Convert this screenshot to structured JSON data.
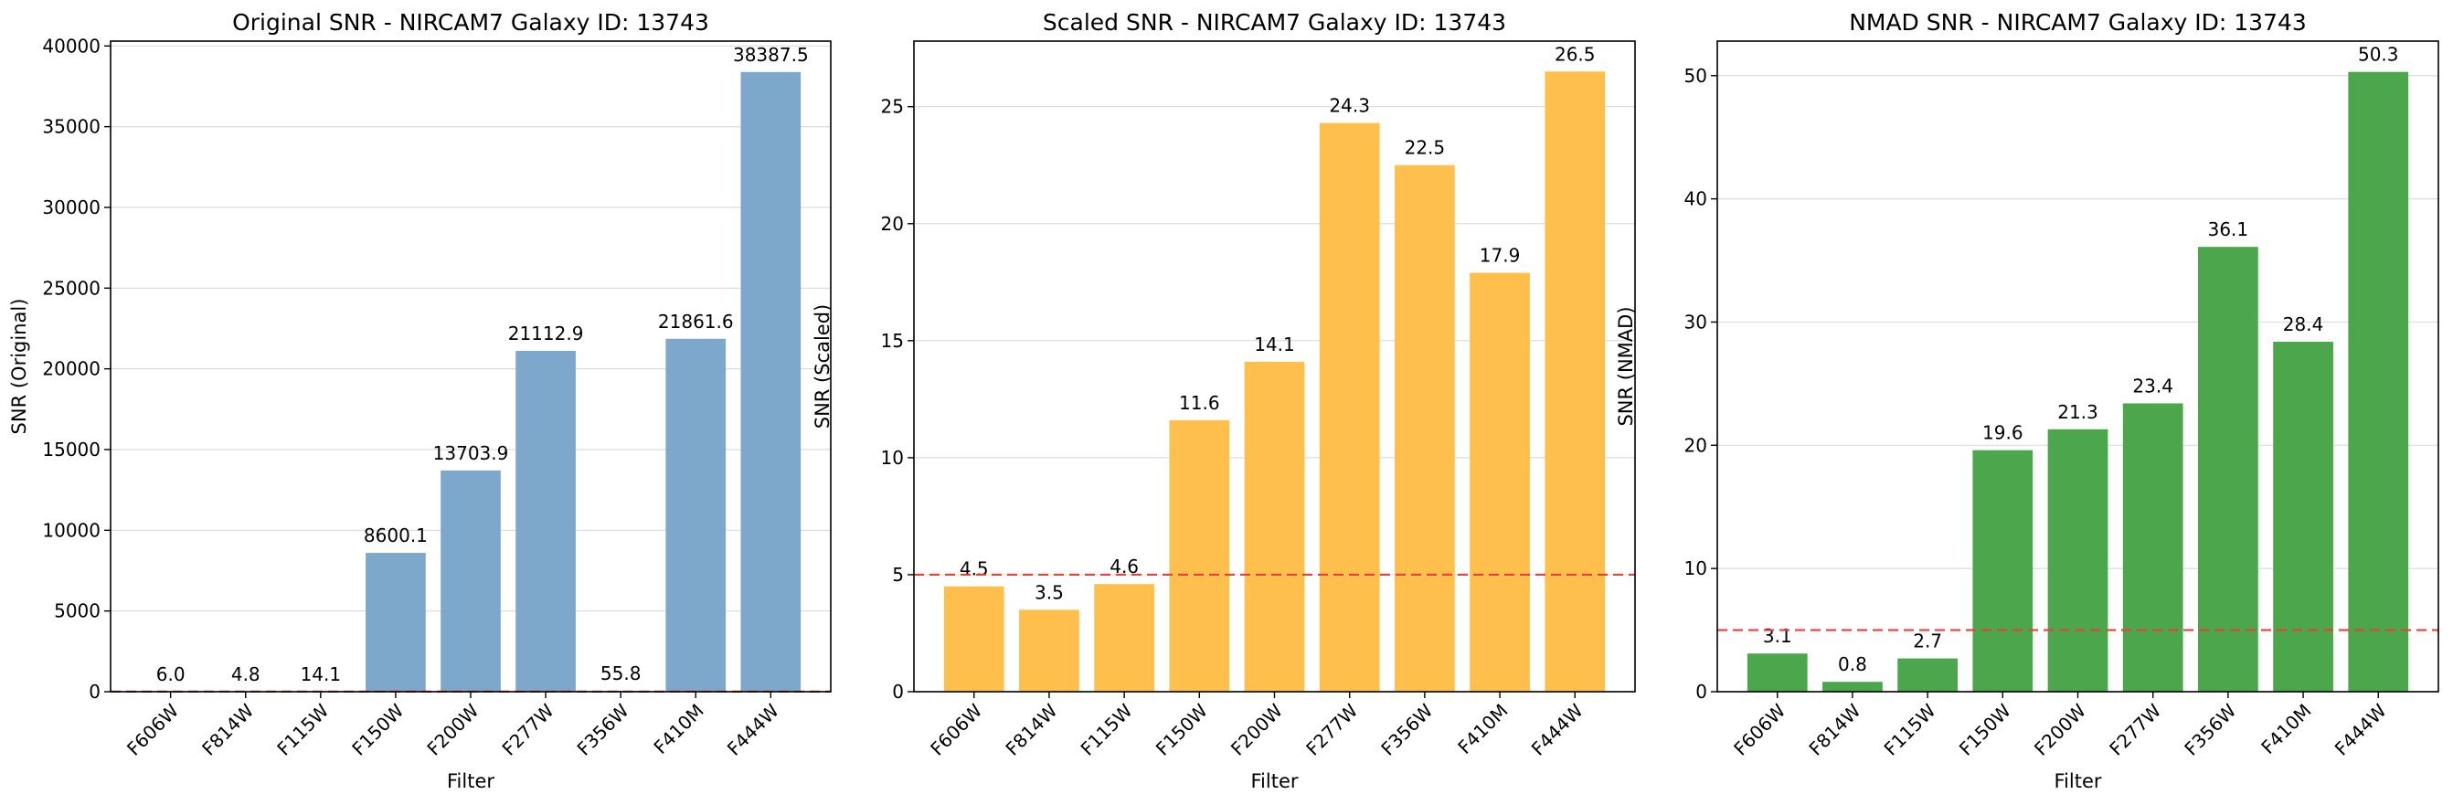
{
  "chart_data": [
    {
      "type": "bar",
      "title": "Original SNR - NIRCAM7 Galaxy ID: 13743",
      "xlabel": "Filter",
      "ylabel": "SNR (Original)",
      "categories": [
        "F606W",
        "F814W",
        "F115W",
        "F150W",
        "F200W",
        "F277W",
        "F356W",
        "F410M",
        "F444W"
      ],
      "values": [
        6.0,
        4.8,
        14.1,
        8600.1,
        13703.9,
        21112.9,
        55.8,
        21861.6,
        38387.5
      ],
      "data_labels": [
        "6.0",
        "4.8",
        "14.1",
        "8600.1",
        "13703.9",
        "21112.9",
        "55.8",
        "21861.6",
        "38387.5"
      ],
      "ylim": [
        0,
        40300
      ],
      "yticks": [
        0,
        5000,
        10000,
        15000,
        20000,
        25000,
        30000,
        35000,
        40000
      ],
      "threshold": 5,
      "color": "#7ea7cc",
      "threshold_color": "#e8413c",
      "grid": true
    },
    {
      "type": "bar",
      "title": "Scaled SNR - NIRCAM7 Galaxy ID: 13743",
      "xlabel": "Filter",
      "ylabel": "SNR (Scaled)",
      "categories": [
        "F606W",
        "F814W",
        "F115W",
        "F150W",
        "F200W",
        "F277W",
        "F356W",
        "F410M",
        "F444W"
      ],
      "values": [
        4.5,
        3.5,
        4.6,
        11.6,
        14.1,
        24.3,
        22.5,
        17.9,
        26.5
      ],
      "data_labels": [
        "4.5",
        "3.5",
        "4.6",
        "11.6",
        "14.1",
        "24.3",
        "22.5",
        "17.9",
        "26.5"
      ],
      "ylim": [
        0,
        27.8
      ],
      "yticks": [
        0,
        5,
        10,
        15,
        20,
        25
      ],
      "threshold": 5,
      "color": "#ffbf4c",
      "threshold_color": "#e8413c",
      "grid": true
    },
    {
      "type": "bar",
      "title": "NMAD SNR - NIRCAM7 Galaxy ID: 13743",
      "xlabel": "Filter",
      "ylabel": "SNR (NMAD)",
      "categories": [
        "F606W",
        "F814W",
        "F115W",
        "F150W",
        "F200W",
        "F277W",
        "F356W",
        "F410M",
        "F444W"
      ],
      "values": [
        3.1,
        0.8,
        2.7,
        19.6,
        21.3,
        23.4,
        36.1,
        28.4,
        50.3
      ],
      "data_labels": [
        "3.1",
        "0.8",
        "2.7",
        "19.6",
        "21.3",
        "23.4",
        "36.1",
        "28.4",
        "50.3"
      ],
      "ylim": [
        0,
        52.8
      ],
      "yticks": [
        0,
        10,
        20,
        30,
        40,
        50
      ],
      "threshold": 5,
      "color": "#4ca64c",
      "threshold_color": "#e8413c",
      "grid": true
    }
  ]
}
